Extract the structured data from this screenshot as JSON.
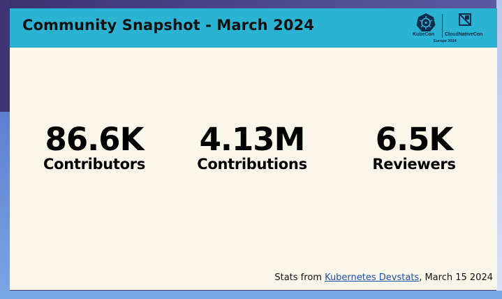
{
  "slide": {
    "title": "Community Snapshot - March 2024",
    "logo": {
      "left_text": "KubeCon",
      "right_text": "CloudNativeCon",
      "sub_text": "Europe 2024"
    },
    "stats": [
      {
        "value": "86.6K",
        "label": "Contributors"
      },
      {
        "value": "4.13M",
        "label": "Contributions"
      },
      {
        "value": "6.5K",
        "label": "Reviewers"
      }
    ],
    "footer": {
      "prefix": "Stats from ",
      "link_text": "Kubernetes Devstats",
      "suffix": ", March 15 2024"
    }
  },
  "colors": {
    "header": "#2bb3d3",
    "slide_background": "#fbf6ea",
    "link": "#1f4fae"
  }
}
